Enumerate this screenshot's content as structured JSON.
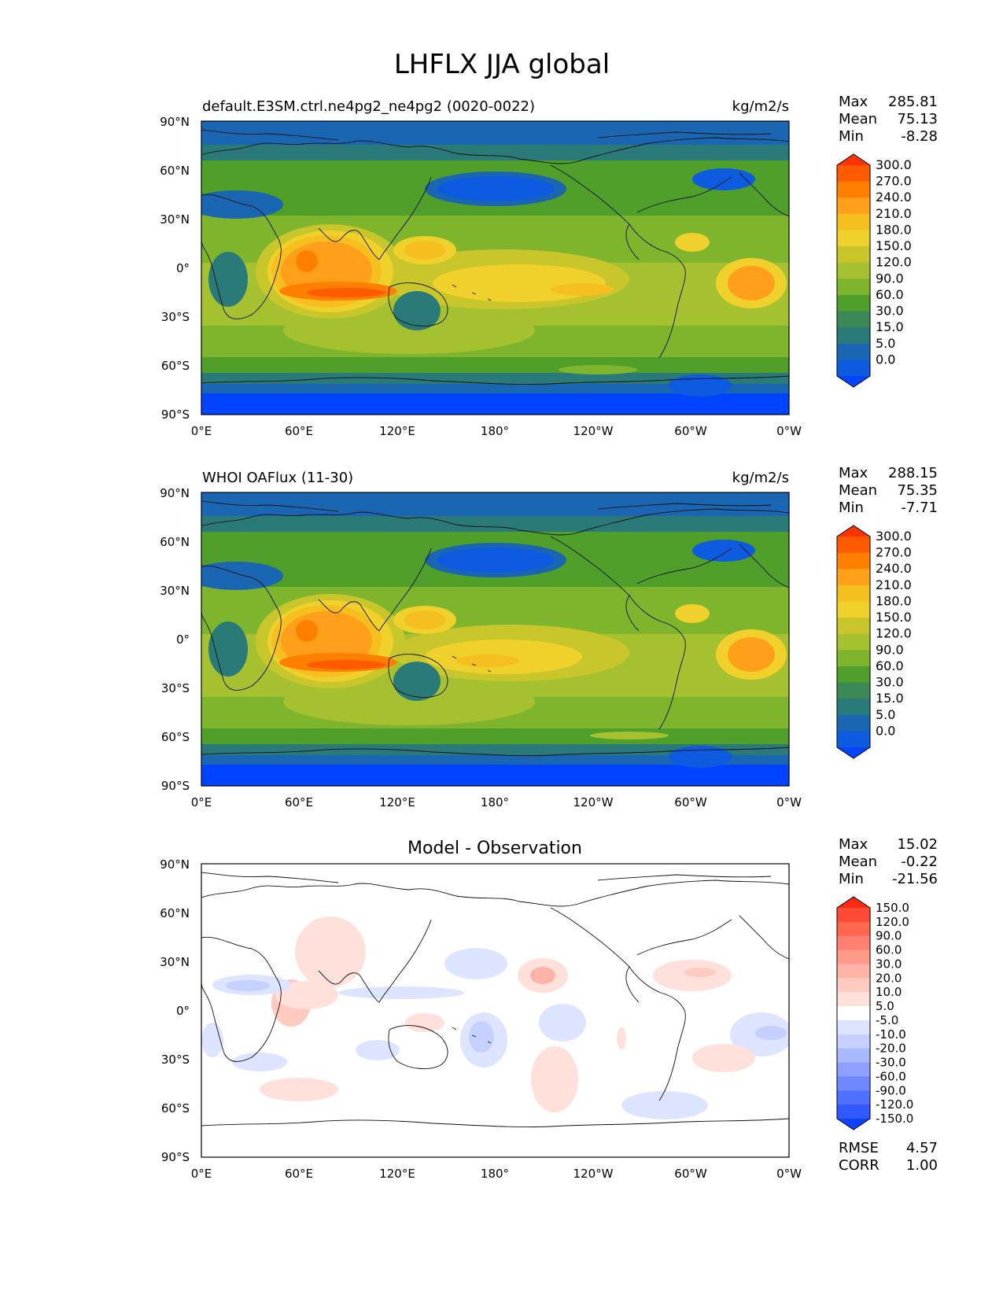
{
  "figure_title": "LHFLX JJA global",
  "panels": [
    {
      "title_left": "default.E3SM.ctrl.ne4pg2_ne4pg2 (0020-0022)",
      "title_center": "",
      "units": "kg/m2/s",
      "stats": [
        {
          "label": "Max",
          "value": "285.81"
        },
        {
          "label": "Mean",
          "value": "75.13"
        },
        {
          "label": "Min",
          "value": "-8.28"
        }
      ],
      "colorbar_labels": [
        "300.0",
        "270.0",
        "240.0",
        "210.0",
        "180.0",
        "150.0",
        "120.0",
        "90.0",
        "60.0",
        "30.0",
        "15.0",
        "5.0",
        "0.0"
      ],
      "colorbar_colors": [
        "#ff3300",
        "#ff5a00",
        "#ff8000",
        "#ff9f1a",
        "#f5bf1f",
        "#f0d02b",
        "#c8c62a",
        "#a6c130",
        "#7fb52d",
        "#4f9f2a",
        "#3b8a55",
        "#2a7a7a",
        "#1a66b3",
        "#0d5be0",
        "#0044ff"
      ]
    },
    {
      "title_left": "WHOI OAFlux (11-30)",
      "title_center": "",
      "units": "kg/m2/s",
      "stats": [
        {
          "label": "Max",
          "value": "288.15"
        },
        {
          "label": "Mean",
          "value": "75.35"
        },
        {
          "label": "Min",
          "value": "-7.71"
        }
      ],
      "colorbar_labels": [
        "300.0",
        "270.0",
        "240.0",
        "210.0",
        "180.0",
        "150.0",
        "120.0",
        "90.0",
        "60.0",
        "30.0",
        "15.0",
        "5.0",
        "0.0"
      ],
      "colorbar_colors": [
        "#ff3300",
        "#ff5a00",
        "#ff8000",
        "#ff9f1a",
        "#f5bf1f",
        "#f0d02b",
        "#c8c62a",
        "#a6c130",
        "#7fb52d",
        "#4f9f2a",
        "#3b8a55",
        "#2a7a7a",
        "#1a66b3",
        "#0d5be0",
        "#0044ff"
      ]
    },
    {
      "title_left": "",
      "title_center": "Model - Observation",
      "units": "",
      "stats": [
        {
          "label": "Max",
          "value": "15.02"
        },
        {
          "label": "Mean",
          "value": "-0.22"
        },
        {
          "label": "Min",
          "value": "-21.56"
        }
      ],
      "colorbar_labels": [
        "150.0",
        "120.0",
        "90.0",
        "60.0",
        "30.0",
        "20.0",
        "10.0",
        "5.0",
        "-5.0",
        "-10.0",
        "-20.0",
        "-30.0",
        "-60.0",
        "-90.0",
        "-120.0",
        "-150.0"
      ],
      "colorbar_colors": [
        "#ff2a10",
        "#ff4a35",
        "#ff6650",
        "#ff8070",
        "#ff9a8a",
        "#ffb3a6",
        "#ffcac0",
        "#ffe0da",
        "#ffffff",
        "#dde4ff",
        "#c6d0ff",
        "#aab8ff",
        "#8ea0ff",
        "#7088ff",
        "#5070ff",
        "#3058ff",
        "#1040ff"
      ],
      "footer_stats": [
        {
          "label": "RMSE",
          "value": "4.57"
        },
        {
          "label": "CORR",
          "value": "1.00"
        }
      ]
    }
  ],
  "lat_labels": [
    "90°N",
    "60°N",
    "30°N",
    "0°",
    "30°S",
    "60°S",
    "90°S"
  ],
  "lon_labels": [
    "0°E",
    "60°E",
    "120°E",
    "180°",
    "120°W",
    "60°W",
    "0°W"
  ]
}
